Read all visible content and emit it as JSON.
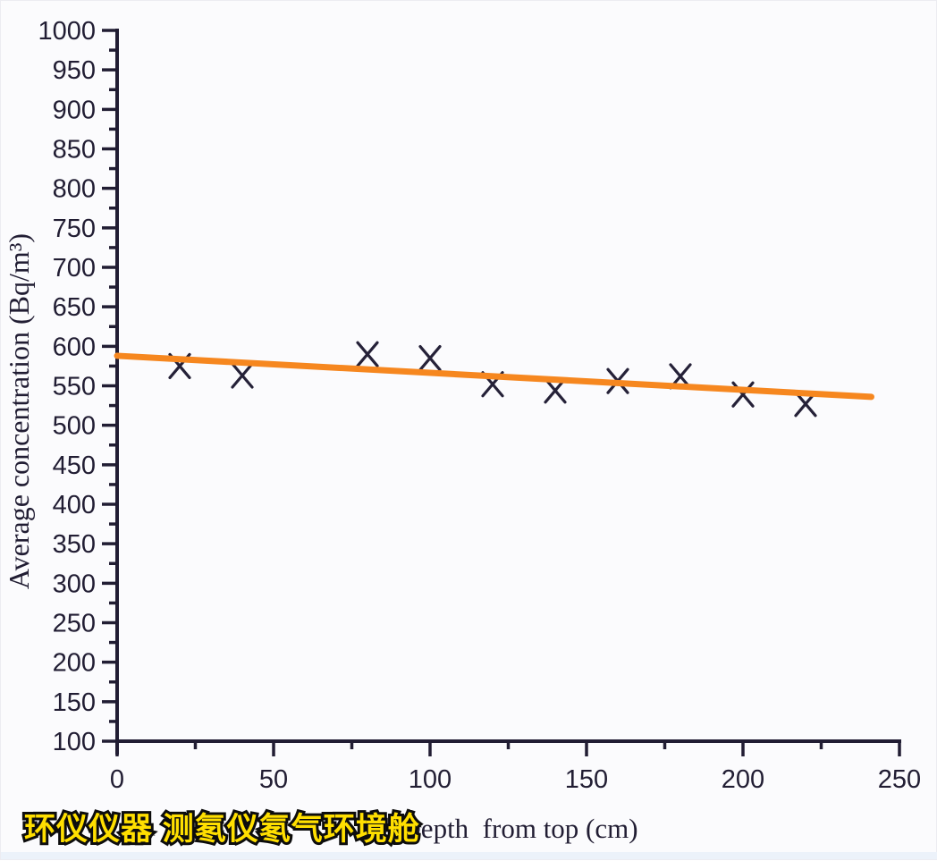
{
  "page": {
    "background": "#fbfbfd",
    "bottom_strip_color": "#ecf2fa"
  },
  "watermark": {
    "text": "环仪仪器 测氡仪氡气环境舱",
    "fill_color": "#ffdf00",
    "outline_color": "#0d0d0d"
  },
  "chart_data": {
    "type": "scatter",
    "title": "",
    "xlabel": "Depth  from top (cm)",
    "ylabel": "Average concentration (Bq/m³)",
    "xlim": [
      0,
      250
    ],
    "ylim": [
      100,
      1000
    ],
    "x_major_step": 50,
    "x_minor_step": 25,
    "y_major_step": 50,
    "y_minor_step": 25,
    "x_tick_labels": [
      "0",
      "50",
      "100",
      "150",
      "200",
      "250"
    ],
    "y_tick_labels": [
      "100",
      "150",
      "200",
      "250",
      "300",
      "350",
      "400",
      "450",
      "500",
      "550",
      "600",
      "650",
      "700",
      "750",
      "800",
      "850",
      "900",
      "950",
      "1000"
    ],
    "grid": false,
    "legend": null,
    "axis_color": "#211d33",
    "tick_label_color": "#211d33",
    "series": [
      {
        "name": "measured-points",
        "kind": "scatter",
        "marker": "x",
        "color": "#252138",
        "points": [
          [
            20,
            575
          ],
          [
            40,
            563
          ],
          [
            80,
            590
          ],
          [
            100,
            585
          ],
          [
            120,
            552
          ],
          [
            140,
            544
          ],
          [
            160,
            556
          ],
          [
            180,
            562
          ],
          [
            200,
            539
          ],
          [
            220,
            527
          ]
        ]
      },
      {
        "name": "trend-line",
        "kind": "line",
        "color": "#f6871f",
        "points": [
          [
            0,
            588
          ],
          [
            241,
            536
          ]
        ]
      }
    ]
  }
}
